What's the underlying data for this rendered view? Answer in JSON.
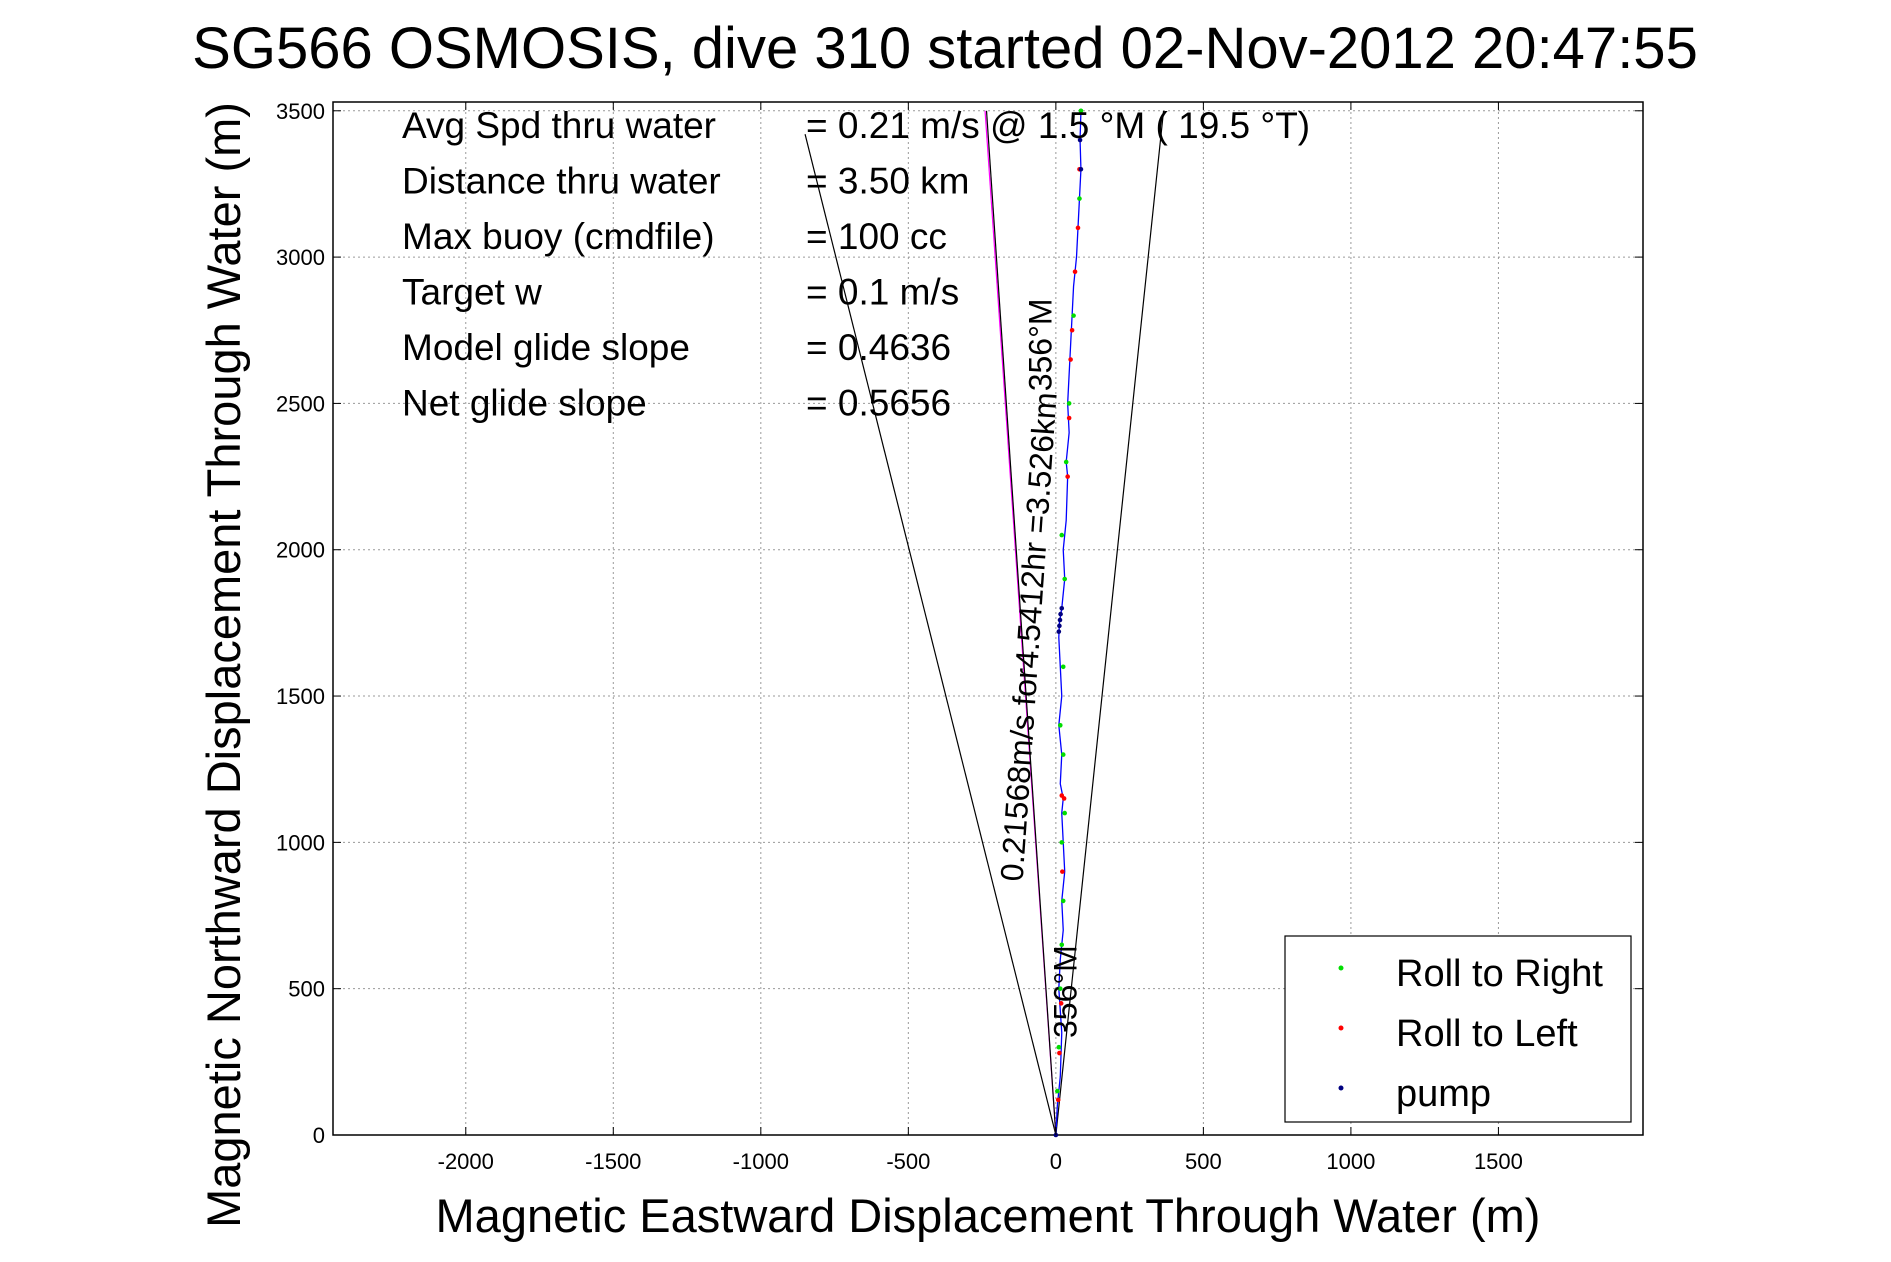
{
  "chart_data": {
    "type": "line",
    "title": "SG566 OSMOSIS, dive 310 started 02-Nov-2012 20:47:55",
    "xlabel": "Magnetic Eastward Displacement Through Water (m)",
    "ylabel": "Magnetic Northward Displacement Through Water (m)",
    "xlim": [
      -2450,
      1990
    ],
    "ylim": [
      0,
      3530
    ],
    "x_ticks": [
      -2000,
      -1500,
      -1000,
      -500,
      0,
      500,
      1000,
      1500
    ],
    "y_ticks": [
      0,
      500,
      1000,
      1500,
      2000,
      2500,
      3000,
      3500
    ],
    "grid": true,
    "info_lines": [
      {
        "label": "Avg Spd thru water",
        "value": "=  0.21 m/s @   1.5 °M ( 19.5 °T)"
      },
      {
        "label": "Distance thru water",
        "value": "=  3.50 km"
      },
      {
        "label": "Max buoy (cmdfile)",
        "value": "= 100 cc"
      },
      {
        "label": "Target w",
        "value": "= 0.1 m/s"
      },
      {
        "label": "Model glide slope",
        "value": "= 0.4636"
      },
      {
        "label": "Net glide slope",
        "value": "= 0.5656"
      }
    ],
    "annotations": [
      {
        "text": "356°M",
        "x": -15,
        "y": 2700,
        "rotate": -90
      },
      {
        "text": "0.21568m/s for4.5412hr =3.526km",
        "x": -55,
        "y": 1700,
        "rotate": -86
      },
      {
        "text": "356°M",
        "x": 70,
        "y": 490,
        "rotate": -90
      }
    ],
    "reference_lines": [
      {
        "name": "heading_left",
        "x": [
          0,
          -850
        ],
        "y": [
          0,
          3420
        ],
        "color": "#000000"
      },
      {
        "name": "heading_right",
        "x": [
          0,
          365
        ],
        "y": [
          0,
          3500
        ],
        "color": "#000000"
      },
      {
        "name": "target_course",
        "x": [
          0,
          -240
        ],
        "y": [
          0,
          3500
        ],
        "color": "#ff00ff"
      },
      {
        "name": "target_course_2",
        "x": [
          0,
          -235
        ],
        "y": [
          0,
          3500
        ],
        "color": "#000000"
      }
    ],
    "series": [
      {
        "name": "track",
        "color": "#0000ff",
        "x": [
          0,
          5,
          15,
          20,
          10,
          15,
          25,
          20,
          30,
          25,
          20,
          25,
          15,
          20,
          10,
          20,
          15,
          10,
          12,
          20,
          30,
          25,
          35,
          40,
          35,
          45,
          40,
          45,
          50,
          55,
          60,
          70,
          75,
          80,
          85,
          82,
          85
        ],
        "y": [
          0,
          100,
          200,
          350,
          500,
          600,
          700,
          800,
          900,
          1000,
          1100,
          1150,
          1200,
          1300,
          1400,
          1500,
          1600,
          1700,
          1750,
          1800,
          1900,
          2000,
          2100,
          2250,
          2300,
          2400,
          2500,
          2600,
          2700,
          2800,
          2900,
          3000,
          3100,
          3200,
          3300,
          3400,
          3500
        ]
      },
      {
        "name": "Roll to Right",
        "color": "#00dd00",
        "x": [
          5,
          10,
          15,
          20,
          25,
          20,
          30,
          25,
          15,
          25,
          30,
          20,
          35,
          45,
          60,
          80,
          85
        ],
        "y": [
          150,
          300,
          500,
          650,
          800,
          1000,
          1100,
          1300,
          1400,
          1600,
          1900,
          2050,
          2300,
          2500,
          2800,
          3200,
          3500
        ]
      },
      {
        "name": "Roll to Left",
        "color": "#ff0000",
        "x": [
          8,
          12,
          18,
          22,
          28,
          20,
          40,
          45,
          50,
          55,
          65,
          75,
          80
        ],
        "y": [
          120,
          280,
          450,
          900,
          1150,
          1160,
          2250,
          2450,
          2650,
          2750,
          2950,
          3100,
          3300
        ]
      },
      {
        "name": "pump",
        "color": "#000080",
        "x": [
          0,
          10,
          12,
          14,
          16,
          20,
          85,
          82
        ],
        "y": [
          0,
          1720,
          1740,
          1760,
          1780,
          1800,
          3300,
          3400
        ]
      }
    ],
    "legend": {
      "position": "bottom-right",
      "entries": [
        {
          "label": "Roll to Right",
          "color": "#00dd00"
        },
        {
          "label": "Roll to Left",
          "color": "#ff0000"
        },
        {
          "label": "pump",
          "color": "#000080"
        }
      ]
    }
  }
}
